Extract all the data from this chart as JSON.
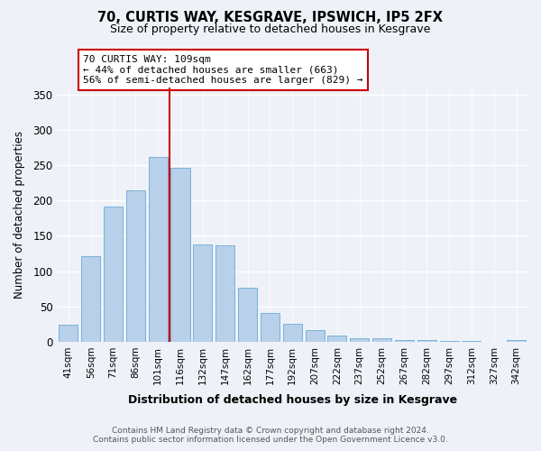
{
  "title": "70, CURTIS WAY, KESGRAVE, IPSWICH, IP5 2FX",
  "subtitle": "Size of property relative to detached houses in Kesgrave",
  "xlabel": "Distribution of detached houses by size in Kesgrave",
  "ylabel": "Number of detached properties",
  "bar_labels": [
    "41sqm",
    "56sqm",
    "71sqm",
    "86sqm",
    "101sqm",
    "116sqm",
    "132sqm",
    "147sqm",
    "162sqm",
    "177sqm",
    "192sqm",
    "207sqm",
    "222sqm",
    "237sqm",
    "252sqm",
    "267sqm",
    "282sqm",
    "297sqm",
    "312sqm",
    "327sqm",
    "342sqm"
  ],
  "bar_values": [
    24,
    121,
    192,
    214,
    262,
    246,
    138,
    136,
    76,
    41,
    25,
    16,
    9,
    5,
    5,
    2,
    2,
    1,
    1,
    0,
    2
  ],
  "bar_color": "#b8d0ea",
  "bar_edge_color": "#6aaad4",
  "property_line_color": "#cc0000",
  "annotation_text": "70 CURTIS WAY: 109sqm\n← 44% of detached houses are smaller (663)\n56% of semi-detached houses are larger (829) →",
  "annotation_box_color": "#ffffff",
  "annotation_box_edge": "#cc0000",
  "ylim": [
    0,
    360
  ],
  "yticks": [
    0,
    50,
    100,
    150,
    200,
    250,
    300,
    350
  ],
  "footer_line1": "Contains HM Land Registry data © Crown copyright and database right 2024.",
  "footer_line2": "Contains public sector information licensed under the Open Government Licence v3.0.",
  "background_color": "#eef2f8"
}
